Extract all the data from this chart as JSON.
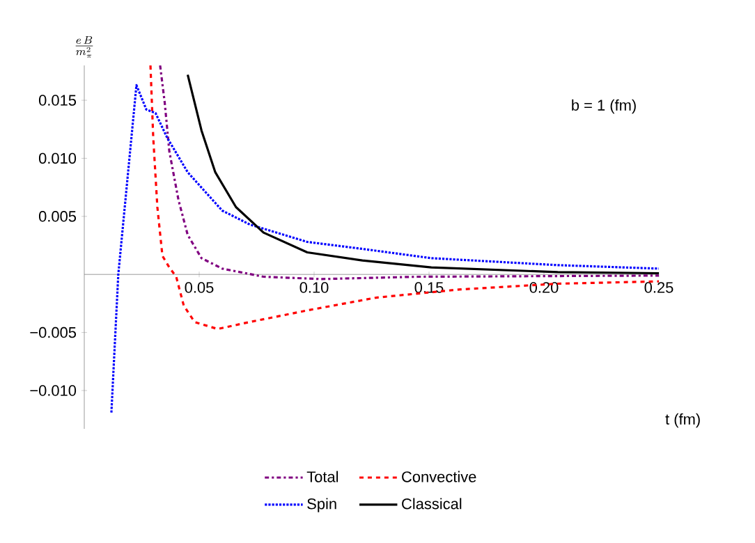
{
  "chart_data": {
    "type": "line",
    "xlabel": "t (fm)",
    "ylabel": "\\frac{e\\,B}{m_\\pi^2}",
    "annotations": [
      "b = 1 (fm)"
    ],
    "xlim": [
      0,
      0.25
    ],
    "ylim": [
      -0.0133,
      0.018
    ],
    "xticks": [
      {
        "value": 0.05,
        "label": "0.05"
      },
      {
        "value": 0.1,
        "label": "0.10"
      },
      {
        "value": 0.15,
        "label": "0.15"
      },
      {
        "value": 0.2,
        "label": "0.20"
      },
      {
        "value": 0.25,
        "label": "0.25"
      }
    ],
    "yticks": [
      {
        "value": -0.01,
        "label": "−0.010"
      },
      {
        "value": -0.005,
        "label": "−0.005"
      },
      {
        "value": 0.005,
        "label": "0.005"
      },
      {
        "value": 0.01,
        "label": "0.010"
      },
      {
        "value": 0.015,
        "label": "0.015"
      }
    ],
    "legend": "bottom",
    "series": [
      {
        "name": "Total",
        "color": "#800080",
        "line_style": "dashdotted",
        "x": [
          0.033,
          0.035,
          0.037,
          0.041,
          0.045,
          0.051,
          0.06,
          0.078,
          0.103,
          0.145,
          0.25
        ],
        "values": [
          0.018,
          0.0148,
          0.0106,
          0.0064,
          0.0034,
          0.0014,
          0.0005,
          -0.0002,
          -0.0004,
          -0.0002,
          -0.0001
        ]
      },
      {
        "name": "Convective",
        "color": "#ff0000",
        "line_style": "dashed",
        "x": [
          0.0288,
          0.03,
          0.0318,
          0.034,
          0.037,
          0.04,
          0.0433,
          0.048,
          0.058,
          0.072,
          0.097,
          0.127,
          0.163,
          0.206,
          0.25
        ],
        "values": [
          0.018,
          0.0118,
          0.0058,
          0.0016,
          0.0006,
          -0.0002,
          -0.0027,
          -0.0041,
          -0.0047,
          -0.0041,
          -0.0031,
          -0.002,
          -0.0013,
          -0.0008,
          -0.0006
        ]
      },
      {
        "name": "Spin",
        "color": "#0000ff",
        "line_style": "dotted",
        "x": [
          0.0118,
          0.0148,
          0.0227,
          0.027,
          0.031,
          0.036,
          0.045,
          0.06,
          0.072,
          0.097,
          0.121,
          0.151,
          0.206,
          0.25
        ],
        "values": [
          -0.0119,
          0.0,
          0.0163,
          0.0142,
          0.0139,
          0.0118,
          0.0088,
          0.0055,
          0.0043,
          0.0028,
          0.0022,
          0.0014,
          0.0008,
          0.0005
        ]
      },
      {
        "name": "Classical",
        "color": "#000000",
        "line_style": "solid",
        "x": [
          0.045,
          0.051,
          0.057,
          0.066,
          0.078,
          0.097,
          0.121,
          0.151,
          0.206,
          0.25
        ],
        "values": [
          0.0172,
          0.0124,
          0.0088,
          0.0058,
          0.0036,
          0.0019,
          0.0012,
          0.0006,
          0.0002,
          0.0001
        ]
      }
    ]
  }
}
